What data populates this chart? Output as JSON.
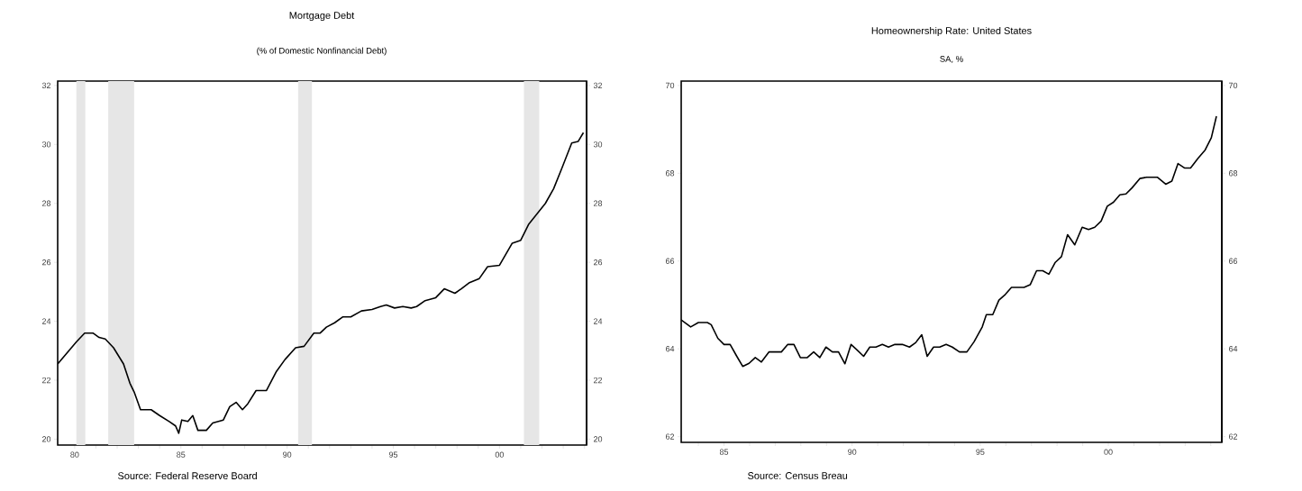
{
  "chart_data": [
    {
      "type": "line",
      "title": "Mortgage Debt",
      "subtitle": "(% of Domestic Nonfinancial Debt)",
      "x": [
        1979.2,
        1980.08,
        1980.47,
        1980.86,
        1981.15,
        1981.44,
        1981.83,
        1982.3,
        1982.6,
        1982.8,
        1983.1,
        1983.6,
        1984.0,
        1984.45,
        1984.75,
        1984.9,
        1985.04,
        1985.33,
        1985.56,
        1985.8,
        1986.2,
        1986.5,
        1987.0,
        1987.3,
        1987.6,
        1987.9,
        1988.15,
        1988.54,
        1989.03,
        1989.5,
        1989.9,
        1990.4,
        1990.8,
        1991.26,
        1991.56,
        1991.85,
        1992.24,
        1992.63,
        1993.0,
        1993.5,
        1994.0,
        1994.4,
        1994.67,
        1995.06,
        1995.45,
        1995.84,
        1996.1,
        1996.5,
        1997.0,
        1997.4,
        1997.9,
        1998.2,
        1998.56,
        1999.05,
        1999.44,
        2000.0,
        2000.6,
        2001.0,
        2001.38,
        2001.77,
        2002.16,
        2002.55,
        2002.94,
        2003.4,
        2003.7,
        2003.95
      ],
      "series": [
        {
          "color": "#000000",
          "values": [
            22.55,
            23.3,
            23.6,
            23.6,
            23.45,
            23.4,
            23.1,
            22.55,
            21.9,
            21.6,
            21.0,
            21.0,
            20.8,
            20.6,
            20.45,
            20.2,
            20.65,
            20.6,
            20.8,
            20.3,
            20.3,
            20.55,
            20.65,
            21.1,
            21.25,
            21.0,
            21.2,
            21.65,
            21.65,
            22.3,
            22.7,
            23.1,
            23.15,
            23.6,
            23.6,
            23.8,
            23.95,
            24.15,
            24.15,
            24.35,
            24.4,
            24.5,
            24.55,
            24.45,
            24.5,
            24.45,
            24.5,
            24.7,
            24.8,
            25.1,
            24.95,
            25.1,
            25.3,
            25.45,
            25.85,
            25.9,
            26.65,
            26.75,
            27.3,
            27.65,
            28.0,
            28.5,
            29.2,
            30.05,
            30.1,
            30.4
          ]
        }
      ],
      "xlim": [
        1979.2,
        2004.1
      ],
      "xticks": [
        {
          "value": 1980,
          "label": "80"
        },
        {
          "value": 1981,
          "label": null
        },
        {
          "value": 1982,
          "label": null
        },
        {
          "value": 1983,
          "label": null
        },
        {
          "value": 1984,
          "label": null
        },
        {
          "value": 1985,
          "label": "85"
        },
        {
          "value": 1986,
          "label": null
        },
        {
          "value": 1987,
          "label": null
        },
        {
          "value": 1988,
          "label": null
        },
        {
          "value": 1989,
          "label": null
        },
        {
          "value": 1990,
          "label": "90"
        },
        {
          "value": 1991,
          "label": null
        },
        {
          "value": 1992,
          "label": null
        },
        {
          "value": 1993,
          "label": null
        },
        {
          "value": 1994,
          "label": null
        },
        {
          "value": 1995,
          "label": "95"
        },
        {
          "value": 1996,
          "label": null
        },
        {
          "value": 1997,
          "label": null
        },
        {
          "value": 1998,
          "label": null
        },
        {
          "value": 1999,
          "label": null
        },
        {
          "value": 2000,
          "label": "00"
        },
        {
          "value": 2001,
          "label": null
        },
        {
          "value": 2002,
          "label": null
        },
        {
          "value": 2003,
          "label": null
        },
        {
          "value": 2004,
          "label": null
        }
      ],
      "ylim": [
        19.8,
        32.15
      ],
      "yticks": [
        20,
        22,
        24,
        26,
        28,
        30,
        32
      ],
      "y2lim": [
        19.8,
        32.15
      ],
      "y2ticks": [
        20,
        22,
        24,
        26,
        28,
        30,
        32
      ],
      "bands": [
        {
          "axis": "x",
          "from": 1980.08,
          "to": 1980.5,
          "color": "#e6e6e6"
        },
        {
          "axis": "x",
          "from": 1981.58,
          "to": 1982.8,
          "color": "#e6e6e6"
        },
        {
          "axis": "x",
          "from": 1990.52,
          "to": 1991.17,
          "color": "#e6e6e6"
        },
        {
          "axis": "x",
          "from": 2001.15,
          "to": 2001.87,
          "color": "#e6e6e6"
        }
      ],
      "annotations": [
        "Source: Federal Reserve Board"
      ]
    },
    {
      "type": "line",
      "title": "Homeownership Rate: United States",
      "subtitle": "SA, %",
      "x": [
        1983.33,
        1983.7,
        1984.0,
        1984.35,
        1984.5,
        1984.76,
        1985.0,
        1985.24,
        1985.5,
        1985.73,
        1985.98,
        1986.22,
        1986.46,
        1986.76,
        1987.24,
        1987.49,
        1987.73,
        1987.98,
        1988.25,
        1988.5,
        1988.74,
        1988.98,
        1989.23,
        1989.47,
        1989.72,
        1989.96,
        1990.2,
        1990.45,
        1990.69,
        1990.93,
        1991.18,
        1991.42,
        1991.67,
        1991.96,
        1992.24,
        1992.48,
        1992.72,
        1992.93,
        1993.18,
        1993.42,
        1993.67,
        1993.91,
        1994.19,
        1994.48,
        1994.76,
        1995.08,
        1995.24,
        1995.49,
        1995.73,
        1995.98,
        1996.22,
        1996.71,
        1996.95,
        1997.2,
        1997.44,
        1997.68,
        1997.93,
        1998.17,
        1998.41,
        1998.69,
        1998.98,
        1999.23,
        1999.47,
        1999.72,
        1999.96,
        2000.2,
        2000.45,
        2000.69,
        2000.93,
        2001.23,
        2001.5,
        2001.91,
        2002.24,
        2002.48,
        2002.72,
        2002.97,
        2003.21,
        2003.5,
        2003.78,
        2004.02,
        2004.22
      ],
      "series": [
        {
          "color": "#000000",
          "values": [
            64.66,
            64.5,
            64.6,
            64.6,
            64.55,
            64.24,
            64.1,
            64.1,
            63.83,
            63.6,
            63.67,
            63.8,
            63.7,
            63.93,
            63.93,
            64.1,
            64.1,
            63.8,
            63.8,
            63.93,
            63.8,
            64.04,
            63.93,
            63.93,
            63.66,
            64.1,
            63.97,
            63.83,
            64.04,
            64.04,
            64.1,
            64.04,
            64.1,
            64.1,
            64.04,
            64.14,
            64.32,
            63.83,
            64.04,
            64.04,
            64.1,
            64.04,
            63.93,
            63.93,
            64.16,
            64.5,
            64.78,
            64.78,
            65.11,
            65.24,
            65.4,
            65.4,
            65.46,
            65.78,
            65.78,
            65.7,
            65.97,
            66.1,
            66.6,
            66.37,
            66.77,
            66.72,
            66.77,
            66.91,
            67.25,
            67.34,
            67.51,
            67.53,
            67.67,
            67.88,
            67.91,
            67.91,
            67.75,
            67.82,
            68.22,
            68.12,
            68.12,
            68.34,
            68.53,
            68.81,
            69.3
          ]
        }
      ],
      "xlim": [
        1983.33,
        2004.43
      ],
      "xticks": [
        {
          "value": 1984,
          "label": null
        },
        {
          "value": 1985,
          "label": "85"
        },
        {
          "value": 1986,
          "label": null
        },
        {
          "value": 1987,
          "label": null
        },
        {
          "value": 1988,
          "label": null
        },
        {
          "value": 1989,
          "label": null
        },
        {
          "value": 1990,
          "label": "90"
        },
        {
          "value": 1991,
          "label": null
        },
        {
          "value": 1992,
          "label": null
        },
        {
          "value": 1993,
          "label": null
        },
        {
          "value": 1994,
          "label": null
        },
        {
          "value": 1995,
          "label": "95"
        },
        {
          "value": 1996,
          "label": null
        },
        {
          "value": 1997,
          "label": null
        },
        {
          "value": 1998,
          "label": null
        },
        {
          "value": 1999,
          "label": null
        },
        {
          "value": 2000,
          "label": "00"
        },
        {
          "value": 2001,
          "label": null
        },
        {
          "value": 2002,
          "label": null
        },
        {
          "value": 2003,
          "label": null
        },
        {
          "value": 2004,
          "label": null
        }
      ],
      "ylim": [
        61.87,
        70.1
      ],
      "yticks": [
        62,
        64,
        66,
        68,
        70
      ],
      "y2lim": [
        61.87,
        70.1
      ],
      "y2ticks": [
        62,
        64,
        66,
        68,
        70
      ],
      "annotations": [
        "Source: Census Breau"
      ]
    }
  ]
}
